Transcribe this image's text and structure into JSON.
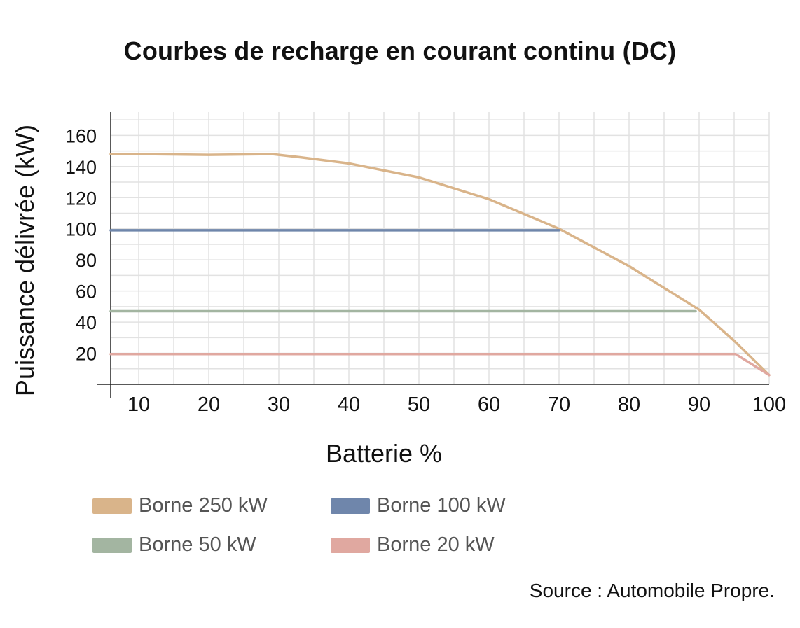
{
  "chart_data": {
    "type": "line",
    "title": "Courbes de recharge en courant continu (DC)",
    "xlabel": "Batterie %",
    "ylabel": "Puissance délivrée (kW)",
    "xlim": [
      6,
      100
    ],
    "ylim": [
      0,
      175
    ],
    "x_ticks": [
      10,
      20,
      30,
      40,
      50,
      60,
      70,
      80,
      90,
      100
    ],
    "y_ticks": [
      20,
      40,
      60,
      80,
      100,
      120,
      140,
      160
    ],
    "grid": true,
    "legend_position": "bottom",
    "series": [
      {
        "name": "Borne 250 kW",
        "color": "#d9b48a",
        "points": [
          [
            6,
            148
          ],
          [
            10,
            148
          ],
          [
            20,
            147.5
          ],
          [
            29,
            148
          ],
          [
            33,
            146
          ],
          [
            40,
            142
          ],
          [
            50,
            133
          ],
          [
            60,
            119
          ],
          [
            70,
            100
          ],
          [
            80,
            76
          ],
          [
            90,
            48
          ],
          [
            95,
            28
          ],
          [
            100,
            6
          ]
        ]
      },
      {
        "name": "Borne 100 kW",
        "color": "#6f86ab",
        "points": [
          [
            6,
            99
          ],
          [
            70,
            99
          ]
        ]
      },
      {
        "name": "Borne 50 kW",
        "color": "#a3b5a1",
        "points": [
          [
            6,
            47
          ],
          [
            89.5,
            47
          ]
        ]
      },
      {
        "name": "Borne 20 kW",
        "color": "#e0a8a0",
        "points": [
          [
            6,
            19.5
          ],
          [
            95.2,
            19.5
          ],
          [
            100,
            6
          ]
        ]
      }
    ]
  },
  "source": "Source : Automobile Propre."
}
